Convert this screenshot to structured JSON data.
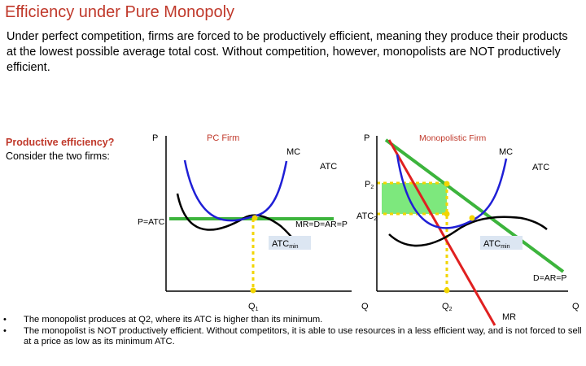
{
  "title": "Efficiency under Pure Monopoly",
  "intro": "Under perfect competition, firms are forced to be productively efficient, meaning they produce their products at the lowest possible average total cost. Without competition, however, monopolists are NOT productively efficient.",
  "side": {
    "question": "Productive efficiency?",
    "consider": "Consider the two firms:"
  },
  "pc_graph": {
    "title": "PC Firm",
    "y_axis": "P",
    "x_axis": "Q",
    "mc": "MC",
    "atc": "ATC",
    "price_label": "P=ATC",
    "demand_label": "MR=D=AR=P",
    "atcmin": "ATC",
    "atcmin_sub": "min",
    "q_label": "Q",
    "q_sub": "1"
  },
  "mono_graph": {
    "title": "Monopolistic Firm",
    "y_axis": "P",
    "x_axis": "Q",
    "mc": "MC",
    "atc": "ATC",
    "p2": "P",
    "p2_sub": "2",
    "atc2": "ATC",
    "atc2_sub": "2",
    "atcmin": "ATC",
    "atcmin_sub": "min",
    "demand_label": "D=AR=P",
    "mr_label": "MR",
    "q_label": "Q",
    "q_sub": "2"
  },
  "colors": {
    "title": "#c0392b",
    "mc": "#1f1fd6",
    "atc": "#000000",
    "demand": "#3cb43c",
    "mr": "#e02020",
    "dotted": "#f2d500",
    "profit_fill": "#7de87d",
    "label_box": "#dce6f2"
  },
  "bullets": [
    "The monopolist produces at Q2, where its ATC is higher than its minimum.",
    "The monopolist is NOT productively efficient. Without competitors, it is able to use resources in a less efficient way, and is not forced to sell at a price as low as its minimum ATC."
  ],
  "bullet_marker": "•"
}
